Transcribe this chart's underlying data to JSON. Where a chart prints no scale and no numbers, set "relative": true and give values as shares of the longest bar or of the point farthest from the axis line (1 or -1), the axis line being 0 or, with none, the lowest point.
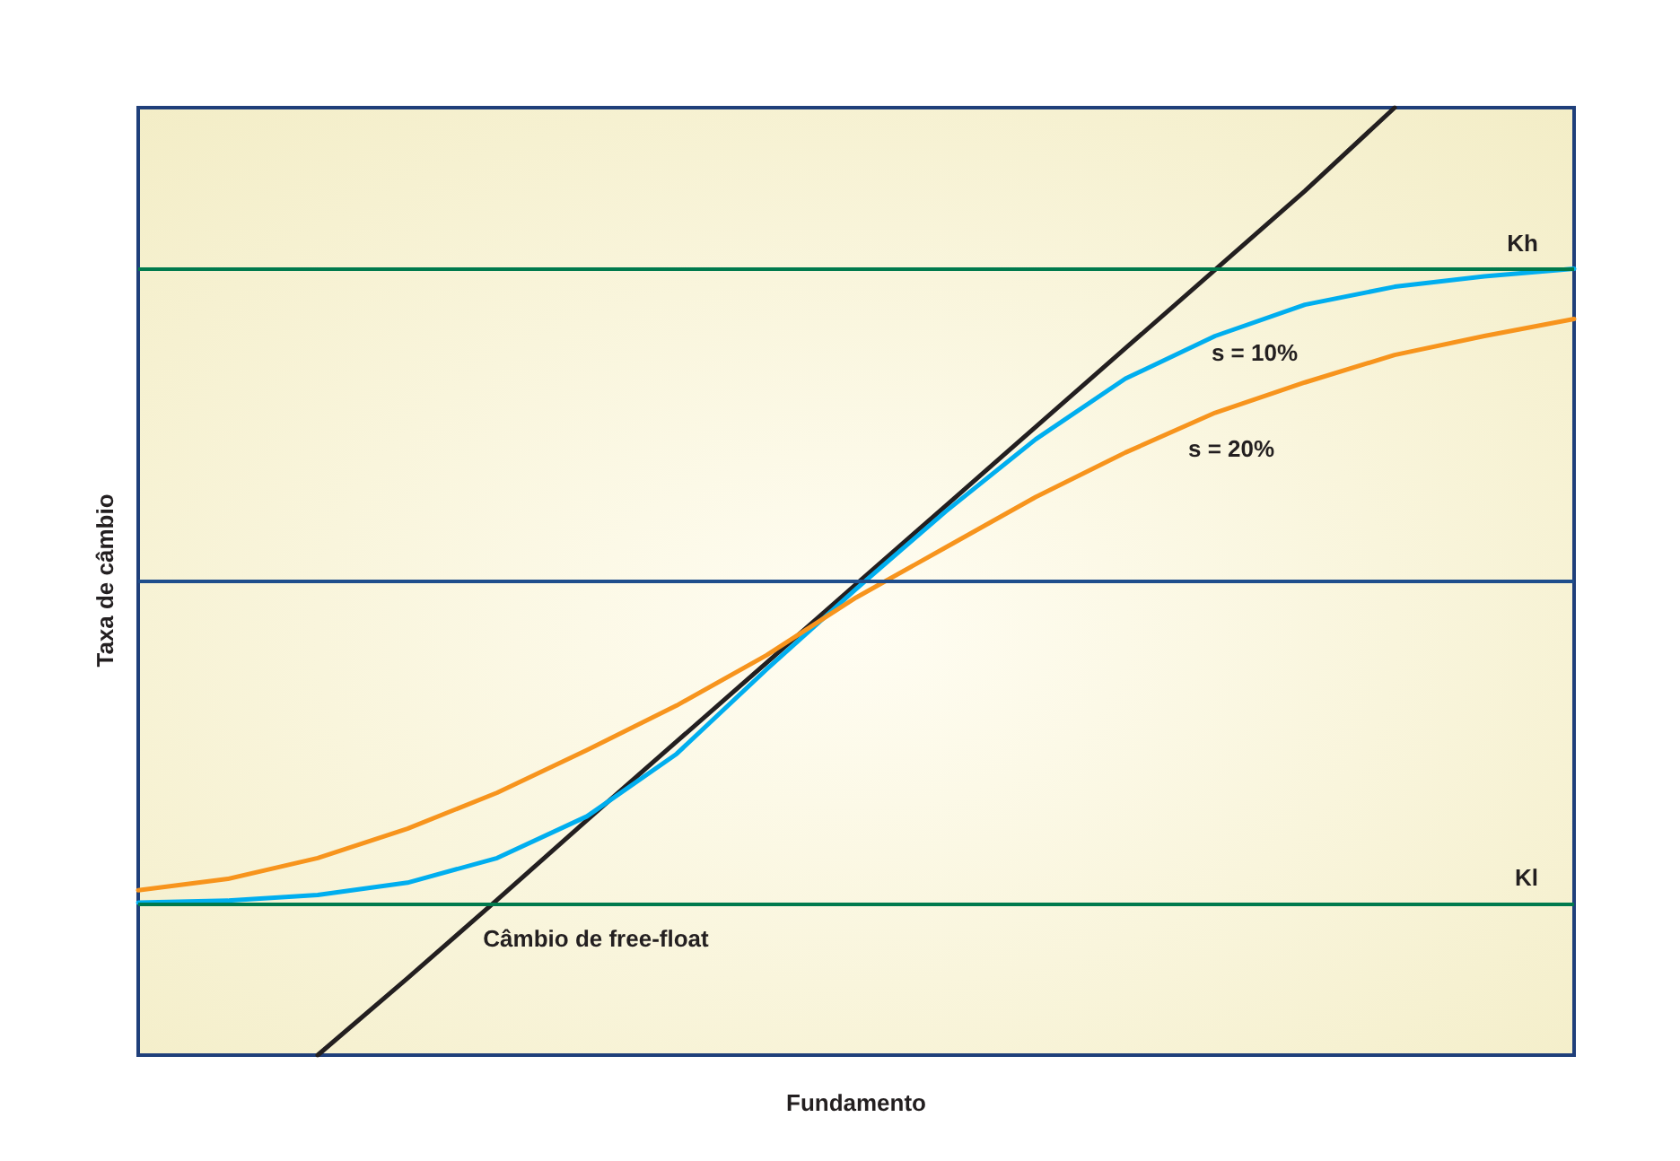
{
  "chart_data": {
    "type": "line",
    "relative": true,
    "xlabel": "Fundamento",
    "ylabel": "Taxa de câmbio",
    "marker": "none",
    "line_style": "solid",
    "categories": [
      null,
      null,
      null,
      null,
      null,
      null,
      null,
      null,
      null,
      null,
      null,
      null,
      null,
      null,
      null,
      null,
      null
    ],
    "series": [
      {
        "name": "Câmbio de free-float",
        "color": "#231f20",
        "values": [
          null,
          null,
          0,
          0.081,
          0.164,
          0.248,
          0.331,
          0.414,
          0.497,
          0.58,
          0.663,
          0.746,
          0.829,
          0.912,
          1,
          null,
          null
        ]
      },
      {
        "name": "s = 10%",
        "color": "#00aeef",
        "values": [
          0.161,
          0.163,
          0.169,
          0.182,
          0.208,
          0.252,
          0.318,
          0.407,
          0.492,
          0.574,
          0.65,
          0.714,
          0.759,
          0.792,
          0.811,
          0.822,
          0.83
        ]
      },
      {
        "name": "s = 20%",
        "color": "#f7941d",
        "values": [
          0.174,
          0.186,
          0.208,
          0.239,
          0.277,
          0.322,
          0.369,
          0.422,
          0.483,
          0.536,
          0.589,
          0.636,
          0.678,
          0.71,
          0.739,
          0.759,
          0.777
        ]
      }
    ],
    "ref_lines": [
      {
        "axis": "y",
        "value": 0.833,
        "label": "Kh",
        "color": "#007a4d"
      },
      {
        "axis": "y",
        "value": 0.502,
        "label": null,
        "color": "#1f4e8c"
      },
      {
        "axis": "y",
        "value": 0.163,
        "label": "Kl",
        "color": "#007a4d"
      }
    ]
  }
}
